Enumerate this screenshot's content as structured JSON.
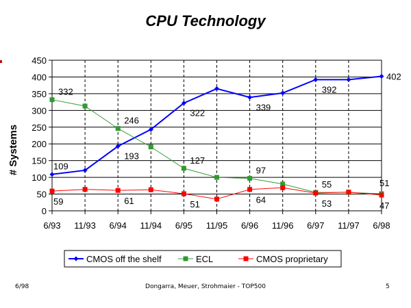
{
  "colors": {
    "cmos_shelf": "#0000ff",
    "ecl": "#339933",
    "cmos_prop": "#ff0000",
    "side_mark": "#cc0000"
  },
  "footer": {
    "left": "6/98",
    "center": "Dongarra, Meuer, Strohmaier - TOP500",
    "right": "5"
  },
  "chart_data": {
    "type": "line",
    "title": "CPU Technology",
    "xlabel": "",
    "ylabel": "# Systems",
    "ylim": [
      0,
      450
    ],
    "yticks": [
      0,
      50,
      100,
      150,
      200,
      250,
      300,
      350,
      400,
      450
    ],
    "grid": true,
    "legend": "bottom",
    "categories": [
      "6/93",
      "11/93",
      "6/94",
      "11/94",
      "6/95",
      "11/95",
      "6/96",
      "11/96",
      "6/97",
      "11/97",
      "6/98"
    ],
    "series": [
      {
        "name": "CMOS off the shelf",
        "color": "#0000ff",
        "marker": "diamond",
        "values": [
          109,
          121,
          193,
          243,
          322,
          365,
          339,
          352,
          392,
          392,
          402
        ],
        "labels": [
          "109",
          null,
          "193",
          null,
          "322",
          null,
          "339",
          null,
          "392",
          null,
          "402"
        ]
      },
      {
        "name": "ECL",
        "color": "#339933",
        "marker": "square",
        "values": [
          332,
          313,
          246,
          191,
          127,
          100,
          97,
          80,
          55,
          55,
          51
        ],
        "labels": [
          "332",
          null,
          "246",
          null,
          "127",
          null,
          "97",
          null,
          "55",
          null,
          "51"
        ]
      },
      {
        "name": "CMOS proprietary",
        "color": "#ff0000",
        "marker": "square",
        "values": [
          59,
          64,
          61,
          63,
          51,
          35,
          64,
          69,
          53,
          56,
          47
        ],
        "labels": [
          "59",
          null,
          "61",
          null,
          "51",
          null,
          "64",
          null,
          "53",
          null,
          "47"
        ]
      }
    ]
  }
}
